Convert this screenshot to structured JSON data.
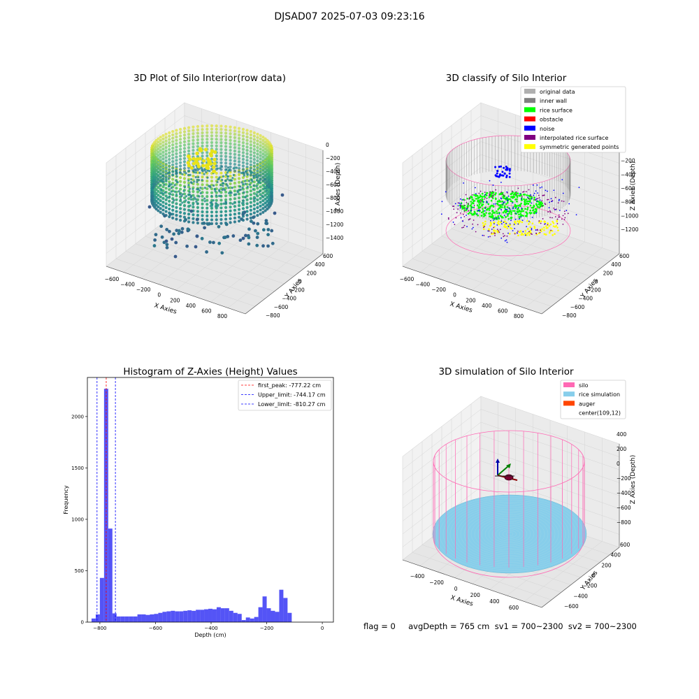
{
  "figure": {
    "suptitle": "DJSAD07 2025-07-03 09:23:16",
    "footer": "flag = 0     avgDepth = 765 cm  sv1 = 700~2300  sv2 = 700~2300"
  },
  "colors": {
    "original_data": "#b0b0b0",
    "inner_wall": "#808080",
    "rice_surface": "#00ff00",
    "obstacle": "#ff0000",
    "noise": "#0000ff",
    "interpolated_rice_surface": "#800080",
    "symmetric_generated_points": "#ffff00",
    "silo": "#ff69b4",
    "rice_simulation": "#87ceeb",
    "auger": "#ff4500",
    "hist_bar": "#4b4bf5",
    "first_peak": "#ff0000",
    "limits": "#0000ff"
  },
  "chart_data": [
    {
      "type": "scatter3d",
      "title": "3D Plot of Silo Interior(row data)",
      "xlabel": "X Axies",
      "ylabel": "Y Axies",
      "zlabel": "Z Axies (Depth)",
      "x_ticks": [
        "−600",
        "−400",
        "−200",
        "0",
        "200",
        "400",
        "600",
        "800"
      ],
      "y_ticks": [
        "−800",
        "−600",
        "−400",
        "−200",
        "0",
        "200",
        "400",
        "600"
      ],
      "z_ticks": [
        "0",
        "−200",
        "−400",
        "−600",
        "−800",
        "−1000",
        "−1200",
        "−1400"
      ],
      "colormap": "viridis"
    },
    {
      "type": "scatter3d",
      "title": "3D classify of Silo Interior",
      "xlabel": "X Axies",
      "ylabel": "Y Axies",
      "zlabel": "Z Axies (Depth)",
      "x_ticks": [
        "−600",
        "−400",
        "−200",
        "0",
        "200",
        "400",
        "600",
        "800"
      ],
      "y_ticks": [
        "−800",
        "−600",
        "−400",
        "−200",
        "0",
        "200",
        "400",
        "600"
      ],
      "z_ticks": [
        "0",
        "−200",
        "−400",
        "−600",
        "−800",
        "−1000",
        "−1200"
      ],
      "legend_position": "top-right",
      "legend": [
        {
          "label": "original data",
          "color": "#b0b0b0"
        },
        {
          "label": "inner wall",
          "color": "#808080"
        },
        {
          "label": "rice surface",
          "color": "#00ff00"
        },
        {
          "label": "obstacle",
          "color": "#ff0000"
        },
        {
          "label": "noise",
          "color": "#0000ff"
        },
        {
          "label": "interpolated rice surface",
          "color": "#800080"
        },
        {
          "label": "symmetric generated points",
          "color": "#ffff00"
        }
      ]
    },
    {
      "type": "bar",
      "title": "Histogram of Z-Axies (Height) Values",
      "xlabel": "Depth (cm)",
      "ylabel": "Frequency",
      "xlim": [
        -845,
        40
      ],
      "ylim": [
        0,
        2380
      ],
      "x_ticks": [
        -800,
        -600,
        -400,
        -200,
        0
      ],
      "x_tick_labels": [
        "−800",
        "−600",
        "−400",
        "−200",
        "0"
      ],
      "y_ticks": [
        0,
        500,
        1000,
        1500,
        2000
      ],
      "y_tick_labels": [
        "0",
        "500",
        "1000",
        "1500",
        "2000"
      ],
      "bin_start": -830,
      "bin_width": 15,
      "values": [
        35,
        75,
        430,
        2270,
        910,
        85,
        55,
        55,
        55,
        55,
        55,
        75,
        75,
        70,
        75,
        80,
        90,
        100,
        105,
        110,
        105,
        105,
        110,
        115,
        110,
        120,
        120,
        125,
        130,
        125,
        145,
        135,
        135,
        110,
        90,
        80,
        20,
        45,
        35,
        50,
        145,
        250,
        135,
        110,
        100,
        315,
        235,
        90
      ],
      "lines": [
        {
          "label": "first_peak: -777.22 cm",
          "value": -777.22,
          "color": "#ff0000"
        },
        {
          "label": "Upper_limit: -744.17 cm",
          "value": -744.17,
          "color": "#0000ff"
        },
        {
          "label": "Lower_limit: -810.27 cm",
          "value": -810.27,
          "color": "#0000ff"
        }
      ],
      "legend_position": "top-right"
    },
    {
      "type": "surface3d",
      "title": "3D simulation of Silo Interior",
      "xlabel": "X Axies",
      "ylabel": "Y Axies",
      "zlabel": "Z Axies (Depth)",
      "x_ticks": [
        "−400",
        "−200",
        "0",
        "200",
        "400",
        "600"
      ],
      "y_ticks": [
        "−600",
        "−400",
        "−200",
        "0",
        "200",
        "400",
        "600"
      ],
      "z_ticks": [
        "400",
        "200",
        "0",
        "−200",
        "−400",
        "−600",
        "−800"
      ],
      "legend_position": "top-right",
      "legend": [
        {
          "label": "silo",
          "color": "#ff69b4"
        },
        {
          "label": "rice simulation",
          "color": "#87ceeb"
        },
        {
          "label": "auger",
          "color": "#ff4500"
        },
        {
          "label": "center(109,12)",
          "color": ""
        }
      ]
    }
  ]
}
